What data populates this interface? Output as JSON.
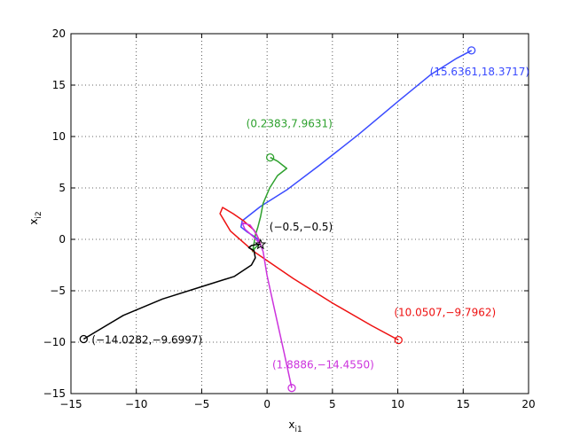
{
  "chart_data": {
    "type": "line",
    "xlabel": "x",
    "xlabel_sub": "i1",
    "ylabel": "x",
    "ylabel_sub": "i2",
    "xlim": [
      -15,
      20
    ],
    "ylim": [
      -15,
      20
    ],
    "xticks": [
      -15,
      -10,
      -5,
      0,
      5,
      10,
      15,
      20
    ],
    "yticks": [
      -15,
      -10,
      -5,
      0,
      5,
      10,
      15,
      20
    ],
    "xtick_labels": [
      "−15",
      "−10",
      "−5",
      "0",
      "5",
      "10",
      "15",
      "20"
    ],
    "ytick_labels": [
      "−15",
      "−10",
      "−5",
      "0",
      "5",
      "10",
      "15",
      "20"
    ],
    "grid": true,
    "equilibrium": {
      "x": -0.5,
      "y": -0.5,
      "marker": "star",
      "label": "(−0.5,−0.5)",
      "color": "#000000"
    },
    "series": [
      {
        "color": "#3a4bff",
        "start": [
          15.6361,
          18.3717
        ],
        "label": "(15.6361,18.3717)",
        "points": [
          [
            15.6361,
            18.3717
          ],
          [
            14.5,
            17.6
          ],
          [
            12.5,
            16.0
          ],
          [
            10.0,
            13.4
          ],
          [
            7.0,
            10.2
          ],
          [
            4.0,
            7.2
          ],
          [
            1.5,
            4.8
          ],
          [
            -0.5,
            3.2
          ],
          [
            -1.9,
            1.8
          ],
          [
            -2.0,
            1.2
          ],
          [
            -1.5,
            0.7
          ],
          [
            -1.0,
            0.3
          ],
          [
            -0.7,
            0.0
          ],
          [
            -0.5,
            -0.5
          ]
        ]
      },
      {
        "color": "#2ea12e",
        "start": [
          0.2383,
          7.9631
        ],
        "label": "(0.2383,7.9631)",
        "points": [
          [
            0.2383,
            7.9631
          ],
          [
            0.8,
            7.6
          ],
          [
            1.3,
            7.1
          ],
          [
            1.5,
            6.9
          ],
          [
            0.8,
            6.2
          ],
          [
            0.2,
            5.0
          ],
          [
            -0.3,
            3.5
          ],
          [
            -0.5,
            2.2
          ],
          [
            -0.7,
            1.2
          ],
          [
            -0.9,
            0.4
          ],
          [
            -1.0,
            -0.4
          ],
          [
            -1.1,
            -1.2
          ],
          [
            -0.9,
            -0.8
          ],
          [
            -0.6,
            -0.5
          ],
          [
            -0.5,
            -0.5
          ]
        ]
      },
      {
        "color": "#ee1111",
        "start": [
          10.0507,
          -9.7962
        ],
        "label": "(10.0507,−9.7962)",
        "points": [
          [
            10.0507,
            -9.7962
          ],
          [
            8.0,
            -8.4
          ],
          [
            5.0,
            -6.2
          ],
          [
            2.0,
            -3.8
          ],
          [
            -1.0,
            -1.2
          ],
          [
            -2.8,
            0.8
          ],
          [
            -3.6,
            2.5
          ],
          [
            -3.4,
            3.1
          ],
          [
            -2.6,
            2.5
          ],
          [
            -1.8,
            1.8
          ],
          [
            -1.0,
            0.9
          ],
          [
            -0.7,
            0.2
          ],
          [
            -0.5,
            -0.5
          ]
        ]
      },
      {
        "color": "#cc33dd",
        "start": [
          1.8886,
          -14.455
        ],
        "label": "(1.8886,−14.4550)",
        "points": [
          [
            1.8886,
            -14.455
          ],
          [
            1.3,
            -11.0
          ],
          [
            0.6,
            -7.0
          ],
          [
            0.0,
            -3.5
          ],
          [
            -0.3,
            -1.2
          ],
          [
            -0.8,
            0.5
          ],
          [
            -1.3,
            1.4
          ],
          [
            -1.9,
            1.6
          ],
          [
            -1.7,
            1.0
          ],
          [
            -1.0,
            0.2
          ],
          [
            -0.5,
            -0.5
          ]
        ]
      },
      {
        "color": "#000000",
        "start": [
          -14.0282,
          -9.6997
        ],
        "label": "(−14.0282,−9.6997)",
        "points": [
          [
            -14.0282,
            -9.6997
          ],
          [
            -11.0,
            -7.4
          ],
          [
            -8.0,
            -5.8
          ],
          [
            -5.0,
            -4.6
          ],
          [
            -2.5,
            -3.6
          ],
          [
            -1.2,
            -2.5
          ],
          [
            -0.9,
            -1.8
          ],
          [
            -1.0,
            -1.1
          ],
          [
            -1.4,
            -0.8
          ],
          [
            -1.2,
            -0.6
          ],
          [
            -0.8,
            -0.5
          ],
          [
            -0.5,
            -0.5
          ]
        ]
      }
    ]
  }
}
